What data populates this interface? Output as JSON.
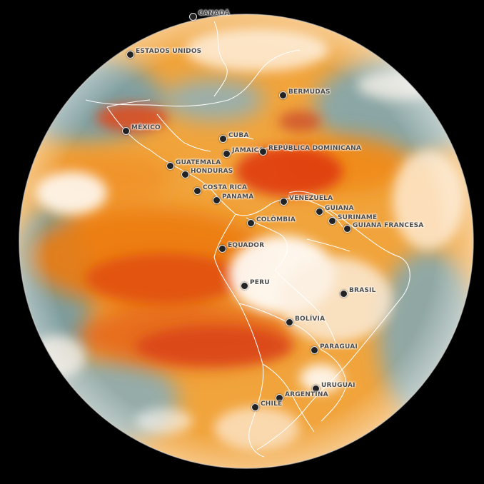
{
  "map": {
    "countries": [
      {
        "name": "CANADÁ"
      },
      {
        "name": "ESTADOS UNIDOS"
      },
      {
        "name": "BERMUDAS"
      },
      {
        "name": "MÉXICO"
      },
      {
        "name": "CUBA"
      },
      {
        "name": "JAMAICA"
      },
      {
        "name": "REPÚBLICA DOMINICANA"
      },
      {
        "name": "GUATEMALA"
      },
      {
        "name": "HONDURAS"
      },
      {
        "name": "COSTA RICA"
      },
      {
        "name": "PANAMÁ"
      },
      {
        "name": "VENEZUELA"
      },
      {
        "name": "GUIANA"
      },
      {
        "name": "SURINAME"
      },
      {
        "name": "GUIANA FRANCESA"
      },
      {
        "name": "COLÔMBIA"
      },
      {
        "name": "EQUADOR"
      },
      {
        "name": "PERU"
      },
      {
        "name": "BRASIL"
      },
      {
        "name": "BOLÍVIA"
      },
      {
        "name": "PARAGUAI"
      },
      {
        "name": "URUGUAI"
      },
      {
        "name": "ARGENTINA"
      },
      {
        "name": "CHILE"
      }
    ],
    "colors": {
      "background": "#000000",
      "ocean_warm": "#f08a18",
      "dry_core": "#e34a12",
      "moist": "#5d93a8",
      "cloud": "#ffffff",
      "border": "#ffffff",
      "marker": "#222222"
    }
  }
}
